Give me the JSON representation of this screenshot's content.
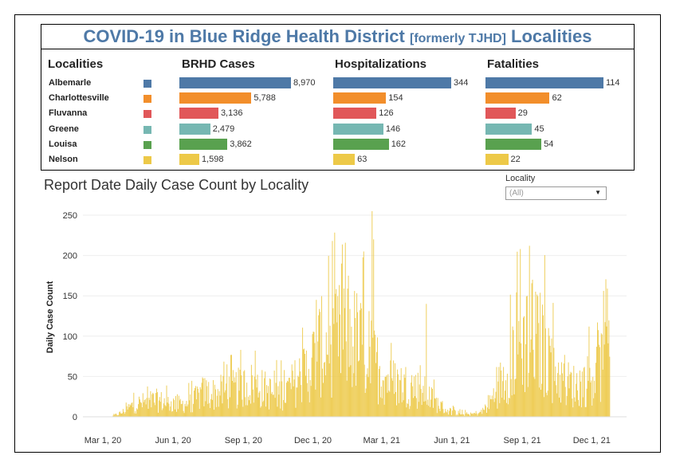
{
  "header": {
    "title_main": "COVID-19 in Blue Ridge Health District",
    "title_sub": "[formerly TJHD]",
    "title_end": "Localities"
  },
  "columns": {
    "localities": "Localities",
    "cases": "BRHD Cases",
    "hospitalizations": "Hospitalizations",
    "fatalities": "Fatalities"
  },
  "localities": [
    {
      "name": "Albemarle",
      "color": "#4e79a7",
      "cases": 8970,
      "cases_label": "8,970",
      "hosp": 344,
      "hosp_label": "344",
      "fatal": 114,
      "fatal_label": "114"
    },
    {
      "name": "Charlottesville",
      "color": "#f28e2b",
      "cases": 5788,
      "cases_label": "5,788",
      "hosp": 154,
      "hosp_label": "154",
      "fatal": 62,
      "fatal_label": "62"
    },
    {
      "name": "Fluvanna",
      "color": "#e15759",
      "cases": 3136,
      "cases_label": "3,136",
      "hosp": 126,
      "hosp_label": "126",
      "fatal": 29,
      "fatal_label": "29"
    },
    {
      "name": "Greene",
      "color": "#76b7b2",
      "cases": 2479,
      "cases_label": "2,479",
      "hosp": 146,
      "hosp_label": "146",
      "fatal": 45,
      "fatal_label": "45"
    },
    {
      "name": "Louisa",
      "color": "#59a14f",
      "cases": 3862,
      "cases_label": "3,862",
      "hosp": 162,
      "hosp_label": "162",
      "fatal": 54,
      "fatal_label": "54"
    },
    {
      "name": "Nelson",
      "color": "#edc948",
      "cases": 1598,
      "cases_label": "1,598",
      "hosp": 63,
      "hosp_label": "63",
      "fatal": 22,
      "fatal_label": "22"
    }
  ],
  "chart_section": {
    "title": "Report Date Daily Case Count by Locality",
    "filter_label": "Locality",
    "filter_value": "(All)"
  },
  "chart_data": {
    "type": "bar",
    "title": "Report Date Daily Case Count by Locality",
    "xlabel": "",
    "ylabel": "Daily Case Count",
    "ylim": [
      0,
      260
    ],
    "yticks": [
      0,
      50,
      100,
      150,
      200,
      250
    ],
    "x_range": [
      "2020-03-01",
      "2022-01-01"
    ],
    "xticks": [
      {
        "date": "2020-03-01",
        "label": "Mar 1, 20"
      },
      {
        "date": "2020-06-01",
        "label": "Jun 1, 20"
      },
      {
        "date": "2020-09-01",
        "label": "Sep 1, 20"
      },
      {
        "date": "2020-12-01",
        "label": "Dec 1, 20"
      },
      {
        "date": "2021-03-01",
        "label": "Mar 1, 21"
      },
      {
        "date": "2021-06-01",
        "label": "Jun 1, 21"
      },
      {
        "date": "2021-09-01",
        "label": "Sep 1, 21"
      },
      {
        "date": "2021-12-01",
        "label": "Dec 1, 21"
      }
    ],
    "bar_color": "#edc948",
    "daily_cases_approx": [
      {
        "date": "2020-03-10",
        "value": 0
      },
      {
        "date": "2020-03-25",
        "value": 5
      },
      {
        "date": "2020-04-10",
        "value": 15
      },
      {
        "date": "2020-04-25",
        "value": 18
      },
      {
        "date": "2020-05-10",
        "value": 20
      },
      {
        "date": "2020-05-25",
        "value": 17
      },
      {
        "date": "2020-06-10",
        "value": 15
      },
      {
        "date": "2020-06-25",
        "value": 18
      },
      {
        "date": "2020-07-10",
        "value": 30
      },
      {
        "date": "2020-07-25",
        "value": 28
      },
      {
        "date": "2020-08-10",
        "value": 32
      },
      {
        "date": "2020-08-25",
        "value": 35
      },
      {
        "date": "2020-09-10",
        "value": 40
      },
      {
        "date": "2020-09-25",
        "value": 35
      },
      {
        "date": "2020-10-10",
        "value": 28
      },
      {
        "date": "2020-10-25",
        "value": 30
      },
      {
        "date": "2020-11-10",
        "value": 45
      },
      {
        "date": "2020-11-25",
        "value": 60
      },
      {
        "date": "2020-12-10",
        "value": 85
      },
      {
        "date": "2020-12-25",
        "value": 90
      },
      {
        "date": "2021-01-10",
        "value": 100
      },
      {
        "date": "2021-01-25",
        "value": 95
      },
      {
        "date": "2021-02-10",
        "value": 75
      },
      {
        "date": "2021-02-25",
        "value": 60
      },
      {
        "date": "2021-03-10",
        "value": 45
      },
      {
        "date": "2021-03-25",
        "value": 40
      },
      {
        "date": "2021-04-10",
        "value": 38
      },
      {
        "date": "2021-04-25",
        "value": 30
      },
      {
        "date": "2021-05-10",
        "value": 18
      },
      {
        "date": "2021-05-25",
        "value": 8
      },
      {
        "date": "2021-06-10",
        "value": 4
      },
      {
        "date": "2021-06-25",
        "value": 3
      },
      {
        "date": "2021-07-10",
        "value": 6
      },
      {
        "date": "2021-07-25",
        "value": 25
      },
      {
        "date": "2021-08-10",
        "value": 55
      },
      {
        "date": "2021-08-25",
        "value": 85
      },
      {
        "date": "2021-09-10",
        "value": 100
      },
      {
        "date": "2021-09-25",
        "value": 90
      },
      {
        "date": "2021-10-10",
        "value": 65
      },
      {
        "date": "2021-10-25",
        "value": 42
      },
      {
        "date": "2021-11-10",
        "value": 38
      },
      {
        "date": "2021-11-25",
        "value": 45
      },
      {
        "date": "2021-12-10",
        "value": 60
      },
      {
        "date": "2021-12-20",
        "value": 70
      }
    ],
    "peaks": [
      {
        "date": "2021-01-07",
        "value": 190
      },
      {
        "date": "2021-01-16",
        "value": 175
      },
      {
        "date": "2021-02-05",
        "value": 205
      },
      {
        "date": "2021-02-16",
        "value": 255
      },
      {
        "date": "2021-02-18",
        "value": 220
      },
      {
        "date": "2021-04-28",
        "value": 140
      },
      {
        "date": "2020-12-05",
        "value": 145
      },
      {
        "date": "2020-09-16",
        "value": 82
      },
      {
        "date": "2020-08-10",
        "value": 65
      },
      {
        "date": "2020-10-20",
        "value": 70
      },
      {
        "date": "2021-08-29",
        "value": 208
      },
      {
        "date": "2021-09-14",
        "value": 170
      },
      {
        "date": "2021-09-07",
        "value": 150
      },
      {
        "date": "2021-10-05",
        "value": 110
      },
      {
        "date": "2021-12-08",
        "value": 117
      },
      {
        "date": "2021-12-20",
        "value": 112
      }
    ]
  }
}
